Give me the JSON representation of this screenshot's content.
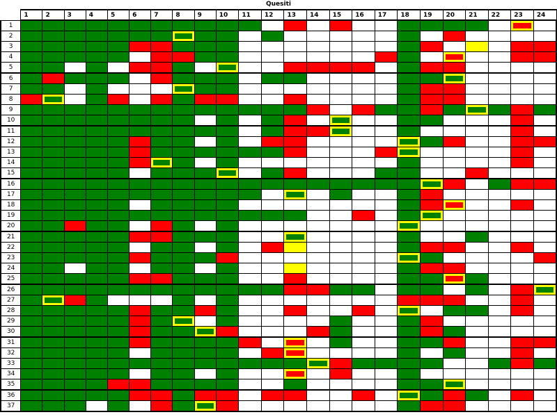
{
  "title": "Quesiti",
  "chart_data": {
    "type": "heatmap",
    "title": "Quesiti",
    "columns": [
      "1",
      "2",
      "3",
      "4",
      "5",
      "6",
      "7",
      "8",
      "9",
      "10",
      "11",
      "12",
      "13",
      "14",
      "15",
      "16",
      "17",
      "18",
      "19",
      "20",
      "21",
      "22",
      "23",
      "24"
    ],
    "row_labels": [
      "1",
      "2",
      "3",
      "4",
      "5",
      "6",
      "7",
      "8",
      "9",
      "10",
      "11",
      "12",
      "13",
      "14",
      "15",
      "16",
      "17",
      "18",
      "19",
      "20",
      "21",
      "22",
      "23",
      "24",
      "25",
      "26",
      "27",
      "28",
      "29",
      "30",
      "31",
      "32",
      "33",
      "34",
      "35",
      "36",
      "37"
    ],
    "cell_colors": {
      "G": "#008000",
      "R": "#ff0000",
      "W": "#ffffff",
      "Y": "#ffff00"
    },
    "highlight_border_color": "#ffff00",
    "grid_line_color": "#000000",
    "group_size": 5,
    "matrix": [
      "G G G G G G G G G G G W R W R W W G G G G W RY W",
      "G G G G G G G GY G G W G W W W W W G W R W W W W",
      "G G G G G R R G G G W W W W W W W G R W Y W R R",
      "G G G G G W R R G G W W W W W W R G W RY W W R R",
      "G G W G W R R G W GY W W R R R R W G R R W W W W",
      "G R G G G W R G G G W G G W W W W G G GY W W W W",
      "G G W G W W W GY G G W W W W W W W G R R W W W W",
      "R GY W G R W R G R R W W R W W W W G R R W W W W",
      "G G G G G G G G G G G G G R W R G G R G GY G R G",
      "G G G G G G G G W G W G R W GY W W G G W W W R W",
      "G G G G G G G G G G W G R R GY W W G W W W W R W",
      "G G G G G R G G W G W R R W W W W GY G R W W R R",
      "G G G G G R G G G G G G R W W W R GY W W W W R W",
      "G G G G G R GY G W G W W W W W W W G W W W W R W",
      "G G G G G W G G G GY W G R W W W G G W W R W W W",
      "G G G G G G G G G G G G G G G G G G GY R W G R R",
      "G G G G G G G G G G G W GY W G W W G R W W W W W",
      "G G G G G W G G G G W W W W W W W G R RY W W R W",
      "G G G G G G G G G G G G G W W R W G GY W W W W W",
      "G G R G G W R G W G W W W W W W W GY W W W W W W",
      "G G G G G R R G G G W W GY W W W W G W W G W W W",
      "G G G G G W G G W G W R Y W W W W G R R W W R W",
      "G G G G G R G G G R W W W W W W W GY G W W W W R",
      "G G W G G W G G W G W W Y W W W W G R R W W W W",
      "G G G G G R R G G G W W R W W W W G G RY G W W W",
      "G G G G G G G G G G G G R R G G W G G W G W R GY",
      "G GY R G W W W G W G W W W W W W W R R R W W R W",
      "G G G G G R G G R G W W R W W R W GY W G G W R W",
      "G G G G G R G GY W G W W W W G W W G R W W W W W",
      "G G G G G R G G GY R W W W R G W W G R G W W W W",
      "G G G G G R G G G G R W RY W G W W G G R W W R R",
      "G G G G G W G G G G W R RY W W W W G W G W W R W",
      "G G G G G G G G G G G G G GY R G G G G W W G R G",
      "G G G G G W G G W G W W RY W R W W G W W W W W W",
      "G G G G R R G G G G W W G W W W W G G GY W W W W",
      "G G G G G R R G R R W R R W W R W GY G R G W R W",
      "G G G W G W R G GY R W W W W W W W G R R W W W W"
    ]
  }
}
